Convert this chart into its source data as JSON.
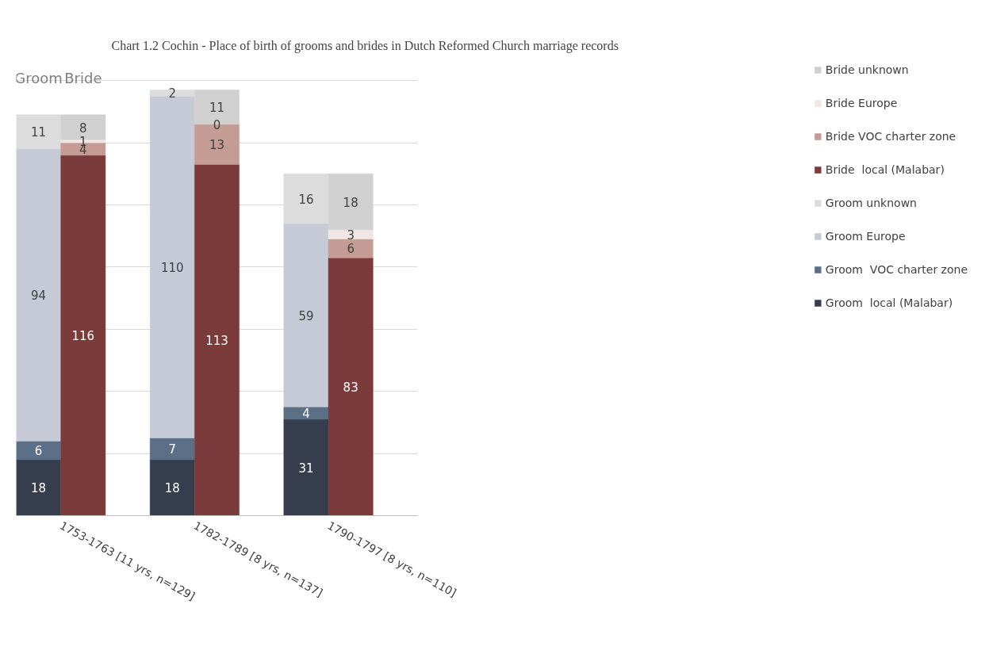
{
  "chart_data": {
    "type": "bar",
    "stacked": true,
    "title": "Chart  1.2 Cochin - Place of birth of grooms and brides in Dutch Reformed Church marriage records",
    "categories": [
      "1753-1763 [11 yrs, n=129]",
      null,
      null,
      "1782-1789 [8 yrs, n=137]",
      null,
      null,
      "1790-1797 [8 yrs, n=110]",
      null,
      null
    ],
    "annotations": [
      "Groom",
      "Bride"
    ],
    "tick_labels": "x",
    "grid": "y",
    "legend": "right",
    "data_labels": true,
    "series": [
      {
        "name": "Groom  local (Malabar)",
        "color": "#363d4d",
        "values": [
          18,
          null,
          null,
          18,
          null,
          null,
          31,
          null,
          null
        ]
      },
      {
        "name": "Groom  VOC charter zone",
        "color": "#5b7086",
        "values": [
          6,
          null,
          null,
          7,
          null,
          null,
          4,
          null,
          null
        ]
      },
      {
        "name": "Groom Europe",
        "color": "#c5cad6",
        "values": [
          94,
          null,
          null,
          110,
          null,
          null,
          59,
          null,
          null
        ]
      },
      {
        "name": "Groom unknown",
        "color": "#dcdcdc",
        "values": [
          11,
          null,
          null,
          2,
          null,
          null,
          16,
          null,
          null
        ]
      },
      {
        "name": "Bride  local (Malabar)",
        "color": "#7b3b3b",
        "values": [
          null,
          116,
          null,
          null,
          113,
          null,
          null,
          83,
          null
        ]
      },
      {
        "name": "Bride VOC charter zone",
        "color": "#c49c94",
        "values": [
          null,
          4,
          null,
          null,
          13,
          null,
          null,
          6,
          null
        ]
      },
      {
        "name": "Bride Europe",
        "color": "#f2e6e4",
        "values": [
          null,
          1,
          null,
          null,
          0,
          null,
          null,
          3,
          null
        ]
      },
      {
        "name": "Bride unknown",
        "color": "#d0d0d0",
        "values": [
          null,
          8,
          null,
          null,
          11,
          null,
          null,
          18,
          null
        ]
      }
    ]
  }
}
